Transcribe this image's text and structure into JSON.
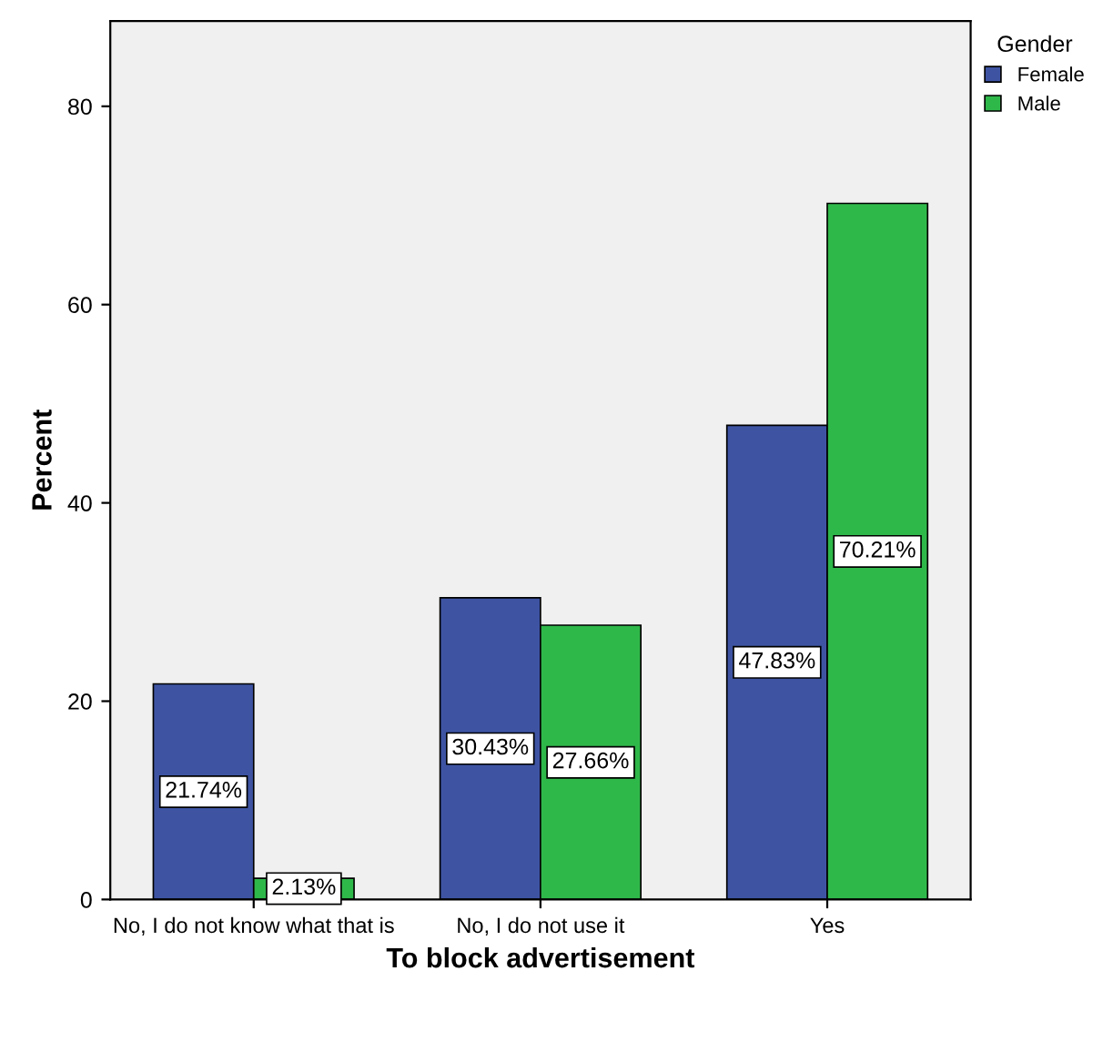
{
  "chart_data": {
    "type": "bar",
    "xlabel": "To block advertisement",
    "ylabel": "Percent",
    "legend_title": "Gender",
    "categories": [
      "No, I do not know what that is",
      "No, I do not use it",
      "Yes"
    ],
    "series": [
      {
        "name": "Female",
        "color": "#3e54a3",
        "values": [
          21.74,
          30.43,
          47.83
        ],
        "value_labels": [
          "21.74%",
          "30.43%",
          "47.83%"
        ]
      },
      {
        "name": "Male",
        "color": "#2fb84a",
        "values": [
          2.13,
          27.66,
          70.21
        ],
        "value_labels": [
          "2.13%",
          "27.66%",
          "70.21%"
        ]
      }
    ],
    "ylim": [
      0,
      88.6
    ],
    "yticks": [
      0,
      20,
      40,
      60,
      80
    ],
    "grid": false,
    "legend": "top right"
  }
}
